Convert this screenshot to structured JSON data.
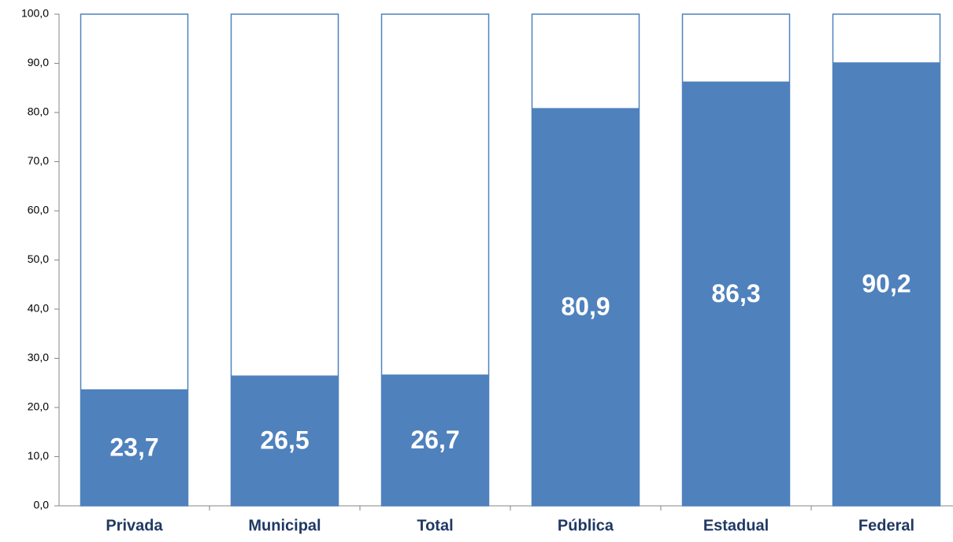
{
  "chart_data": {
    "type": "bar",
    "categories": [
      "Privada",
      "Municipal",
      "Total",
      "Pública",
      "Estadual",
      "Federal"
    ],
    "values": [
      23.7,
      26.5,
      26.7,
      80.9,
      86.3,
      90.2
    ],
    "value_labels": [
      "23,7",
      "26,5",
      "26,7",
      "80,9",
      "86,3",
      "90,2"
    ],
    "color": "#4f81bd",
    "ylim": [
      0,
      100
    ],
    "yticks": [
      {
        "value": 0,
        "label": "0,0"
      },
      {
        "value": 10,
        "label": "10,0"
      },
      {
        "value": 20,
        "label": "20,0"
      },
      {
        "value": 30,
        "label": "30,0"
      },
      {
        "value": 40,
        "label": "40,0"
      },
      {
        "value": 50,
        "label": "50,0"
      },
      {
        "value": 60,
        "label": "60,0"
      },
      {
        "value": 70,
        "label": "70,0"
      },
      {
        "value": 80,
        "label": "80,0"
      },
      {
        "value": 90,
        "label": "90,0"
      },
      {
        "value": 100,
        "label": "100,0"
      }
    ],
    "grid": false
  }
}
